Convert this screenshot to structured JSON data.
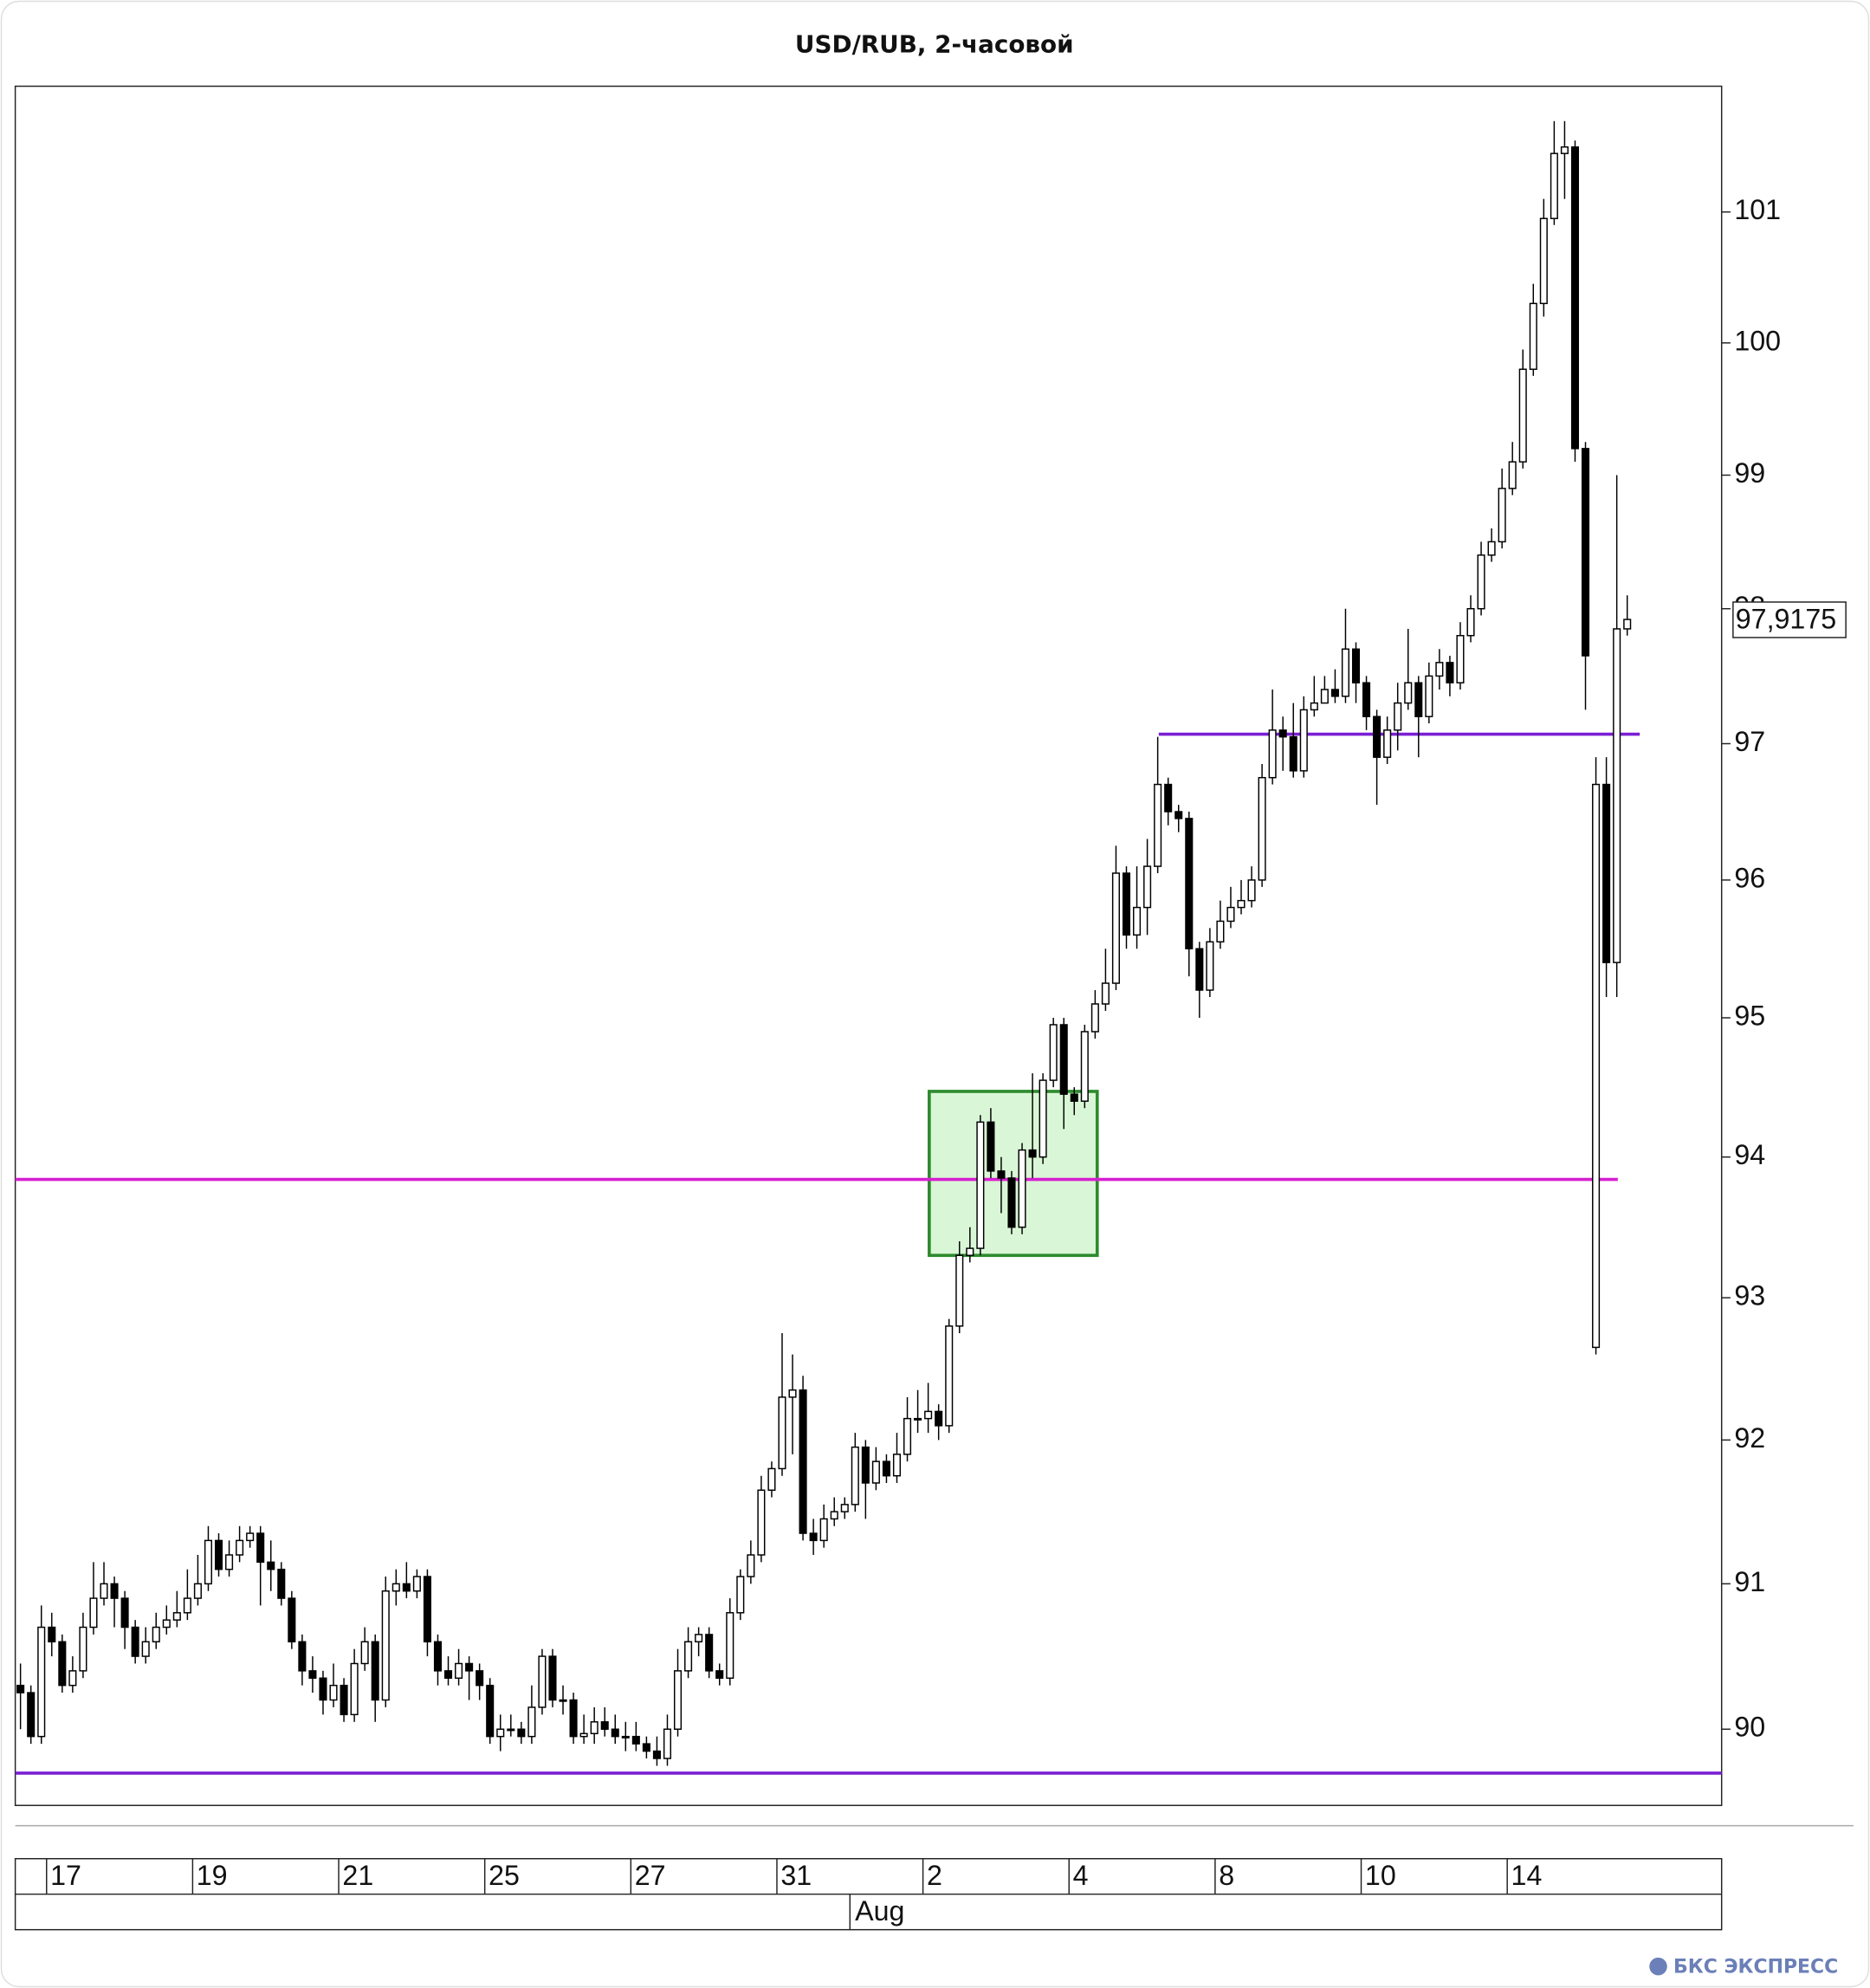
{
  "chart_data": {
    "type": "candlestick",
    "title": "USD/RUB, 2-часовой",
    "log_scale": true,
    "ylim": [
      89.48,
      101.97
    ],
    "yticks": [
      90,
      91,
      92,
      93,
      94,
      95,
      96,
      97,
      98,
      99,
      100,
      101
    ],
    "categories": [
      null,
      null,
      null,
      "17",
      null,
      null,
      null,
      null,
      null,
      null,
      null,
      null,
      null,
      null,
      null,
      null,
      null,
      "19",
      null,
      null,
      null,
      null,
      null,
      null,
      null,
      null,
      null,
      null,
      null,
      null,
      null,
      "21",
      null,
      null,
      null,
      null,
      null,
      null,
      null,
      null,
      null,
      null,
      null,
      null,
      null,
      "25",
      null,
      null,
      null,
      null,
      null,
      null,
      null,
      null,
      null,
      null,
      null,
      null,
      null,
      "27",
      null,
      null,
      null,
      null,
      null,
      null,
      null,
      null,
      null,
      null,
      null,
      null,
      null,
      "31",
      null,
      null,
      null,
      null,
      null,
      null,
      null,
      null,
      null,
      null,
      null,
      null,
      null,
      "2",
      null,
      null,
      null,
      null,
      null,
      null,
      null,
      null,
      null,
      null,
      null,
      null,
      null,
      "4",
      null,
      null,
      null,
      null,
      null,
      null,
      null,
      null,
      null,
      null,
      null,
      null,
      null,
      "8",
      null,
      null,
      null,
      null,
      null,
      null,
      null,
      null,
      null,
      null,
      null,
      null,
      null,
      "10",
      null,
      null,
      null,
      null,
      null,
      null,
      null,
      null,
      null,
      null,
      null,
      null,
      null,
      "14",
      null,
      null,
      null,
      null,
      null,
      null,
      null,
      null,
      null,
      null,
      null
    ],
    "x_groups": [
      {
        "label": "Aug",
        "start": 80
      }
    ],
    "open": [
      90.3,
      90.25,
      89.95,
      90.7,
      90.6,
      90.3,
      90.4,
      90.7,
      90.9,
      91.0,
      90.9,
      90.7,
      90.5,
      90.6,
      90.7,
      90.75,
      90.8,
      90.9,
      91.0,
      91.3,
      91.1,
      91.2,
      91.3,
      91.35,
      91.15,
      91.1,
      90.9,
      90.6,
      90.4,
      90.35,
      90.2,
      90.3,
      90.1,
      90.45,
      90.6,
      90.2,
      90.95,
      91.0,
      90.95,
      91.05,
      90.6,
      90.4,
      90.35,
      90.45,
      90.4,
      90.3,
      89.95,
      90.0,
      90.0,
      89.95,
      90.15,
      90.5,
      90.2,
      90.2,
      89.95,
      89.97,
      90.05,
      90.0,
      89.95,
      89.95,
      89.9,
      89.85,
      89.8,
      90.0,
      90.4,
      90.6,
      90.65,
      90.4,
      90.35,
      90.8,
      91.05,
      91.2,
      91.65,
      91.8,
      92.3,
      92.35,
      91.35,
      91.3,
      91.45,
      91.5,
      91.55,
      91.95,
      91.7,
      91.85,
      91.75,
      91.9,
      92.15,
      92.15,
      92.2,
      92.1,
      92.8,
      93.3,
      93.35,
      94.25,
      93.9,
      93.85,
      93.5,
      94.05,
      94.0,
      94.55,
      94.95,
      94.45,
      94.4,
      94.9,
      95.1,
      95.25,
      96.05,
      95.6,
      95.8,
      96.1,
      96.7,
      96.5,
      96.45,
      95.5,
      95.2,
      95.55,
      95.7,
      95.8,
      95.85,
      96.0,
      96.75,
      97.1,
      97.05,
      96.8,
      97.25,
      97.3,
      97.4,
      97.35,
      97.7,
      97.45,
      97.2,
      96.9,
      97.1,
      97.3,
      97.45,
      97.2,
      97.5,
      97.6,
      97.45,
      97.8,
      98.0,
      98.4,
      98.5,
      98.9,
      99.1,
      99.8,
      100.3,
      100.95,
      101.45,
      101.5,
      99.2,
      92.65,
      96.7,
      95.4,
      97.85
    ],
    "high": [
      90.45,
      90.3,
      90.85,
      90.8,
      90.65,
      90.5,
      90.8,
      91.15,
      91.15,
      91.05,
      90.95,
      90.75,
      90.7,
      90.8,
      90.85,
      90.95,
      91.1,
      91.2,
      91.4,
      91.35,
      91.3,
      91.4,
      91.4,
      91.4,
      91.3,
      91.15,
      90.95,
      90.65,
      90.5,
      90.4,
      90.45,
      90.35,
      90.55,
      90.7,
      90.65,
      91.05,
      91.1,
      91.15,
      91.1,
      91.1,
      90.65,
      90.5,
      90.55,
      90.5,
      90.45,
      90.35,
      90.1,
      90.1,
      90.05,
      90.3,
      90.55,
      90.55,
      90.3,
      90.25,
      90.1,
      90.15,
      90.15,
      90.1,
      90.05,
      90.05,
      89.95,
      89.95,
      90.1,
      90.55,
      90.7,
      90.7,
      90.7,
      90.45,
      90.9,
      91.1,
      91.3,
      91.75,
      91.85,
      92.75,
      92.6,
      92.45,
      91.45,
      91.55,
      91.6,
      91.6,
      92.05,
      92.0,
      91.95,
      91.9,
      92.05,
      92.3,
      92.35,
      92.4,
      92.25,
      92.85,
      93.4,
      93.5,
      94.3,
      94.35,
      94.0,
      93.9,
      94.1,
      94.6,
      94.6,
      95.0,
      95.0,
      94.5,
      94.95,
      95.2,
      95.5,
      96.25,
      96.1,
      96.1,
      96.3,
      97.05,
      96.75,
      96.55,
      96.5,
      95.55,
      95.65,
      95.85,
      95.95,
      96.0,
      96.1,
      96.85,
      97.4,
      97.2,
      97.3,
      97.35,
      97.5,
      97.5,
      97.55,
      98.0,
      97.75,
      97.5,
      97.25,
      97.2,
      97.45,
      97.85,
      97.5,
      97.6,
      97.7,
      97.65,
      97.9,
      98.1,
      98.5,
      98.6,
      99.05,
      99.25,
      99.95,
      100.45,
      101.1,
      101.7,
      101.7,
      101.55,
      99.25,
      96.9,
      96.9,
      99.0,
      98.1
    ],
    "low": [
      90.0,
      89.9,
      89.9,
      90.5,
      90.25,
      90.25,
      90.35,
      90.65,
      90.85,
      90.7,
      90.55,
      90.45,
      90.45,
      90.55,
      90.65,
      90.7,
      90.75,
      90.85,
      90.95,
      91.05,
      91.05,
      91.15,
      91.25,
      90.85,
      90.95,
      90.85,
      90.55,
      90.3,
      90.25,
      90.1,
      90.15,
      90.05,
      90.05,
      90.4,
      90.05,
      90.15,
      90.85,
      90.9,
      90.9,
      90.5,
      90.3,
      90.3,
      90.3,
      90.2,
      90.2,
      89.9,
      89.85,
      89.95,
      89.9,
      89.9,
      90.1,
      90.15,
      90.1,
      89.9,
      89.9,
      89.9,
      89.95,
      89.9,
      89.85,
      89.85,
      89.8,
      89.75,
      89.75,
      89.95,
      90.35,
      90.5,
      90.35,
      90.3,
      90.3,
      90.75,
      91.0,
      91.15,
      91.6,
      91.75,
      91.9,
      91.3,
      91.2,
      91.25,
      91.4,
      91.45,
      91.5,
      91.45,
      91.65,
      91.7,
      91.7,
      91.85,
      92.05,
      92.05,
      92.0,
      92.05,
      92.75,
      93.25,
      93.3,
      93.85,
      93.6,
      93.45,
      93.45,
      93.85,
      93.95,
      94.5,
      94.2,
      94.3,
      94.35,
      94.85,
      95.05,
      95.2,
      95.5,
      95.5,
      95.6,
      96.05,
      96.4,
      96.35,
      95.3,
      95.0,
      95.15,
      95.5,
      95.65,
      95.75,
      95.8,
      95.95,
      96.7,
      96.8,
      96.75,
      96.75,
      97.2,
      97.3,
      97.3,
      97.3,
      97.3,
      97.1,
      96.55,
      96.85,
      96.95,
      97.25,
      96.9,
      97.15,
      97.4,
      97.35,
      97.4,
      97.75,
      97.95,
      98.35,
      98.45,
      98.85,
      99.05,
      99.75,
      100.2,
      100.9,
      101.1,
      99.1,
      97.25,
      92.6,
      95.15,
      95.15,
      97.8
    ],
    "close": [
      90.25,
      89.95,
      90.7,
      90.6,
      90.3,
      90.4,
      90.7,
      90.9,
      91.0,
      90.9,
      90.7,
      90.5,
      90.6,
      90.7,
      90.75,
      90.8,
      90.9,
      91.0,
      91.3,
      91.1,
      91.2,
      91.3,
      91.35,
      91.15,
      91.1,
      90.9,
      90.6,
      90.4,
      90.35,
      90.2,
      90.3,
      90.1,
      90.45,
      90.6,
      90.2,
      90.95,
      91.0,
      90.95,
      91.05,
      90.6,
      90.4,
      90.35,
      90.45,
      90.4,
      90.3,
      89.95,
      90.0,
      90.0,
      89.95,
      90.15,
      90.5,
      90.2,
      90.2,
      89.95,
      89.97,
      90.05,
      90.0,
      89.95,
      89.95,
      89.9,
      89.85,
      89.8,
      90.0,
      90.4,
      90.6,
      90.65,
      90.4,
      90.35,
      90.8,
      91.05,
      91.2,
      91.65,
      91.8,
      92.3,
      92.35,
      91.35,
      91.3,
      91.45,
      91.5,
      91.55,
      91.95,
      91.7,
      91.85,
      91.75,
      91.9,
      92.15,
      92.15,
      92.2,
      92.1,
      92.8,
      93.3,
      93.35,
      94.25,
      93.9,
      93.85,
      93.5,
      94.05,
      94.0,
      94.55,
      94.95,
      94.45,
      94.4,
      94.9,
      95.1,
      95.25,
      96.05,
      95.6,
      95.8,
      96.1,
      96.7,
      96.5,
      96.45,
      95.5,
      95.2,
      95.55,
      95.7,
      95.8,
      95.85,
      96.0,
      96.75,
      97.1,
      97.05,
      96.8,
      97.25,
      97.3,
      97.4,
      97.35,
      97.7,
      97.45,
      97.2,
      96.9,
      97.1,
      97.3,
      97.45,
      97.2,
      97.5,
      97.6,
      97.45,
      97.8,
      98.0,
      98.4,
      98.5,
      98.9,
      99.1,
      99.8,
      100.3,
      100.95,
      101.45,
      101.5,
      99.2,
      97.65,
      96.7,
      95.4,
      97.85,
      97.92
    ],
    "levels": [
      {
        "value": 89.7,
        "color": "#7b1fd4"
      },
      {
        "value": 93.84,
        "color": "#d61fd0"
      },
      {
        "value": 97.07,
        "color": "#7b1fd4"
      }
    ],
    "zone": {
      "low": 93.3,
      "high": 94.47,
      "color": "#d9f7d6",
      "edge": "#2e8b2e"
    },
    "last_price": {
      "value": 97.9175,
      "label": "97,9175"
    },
    "footer": "БКС ЭКСПРЕСС"
  }
}
